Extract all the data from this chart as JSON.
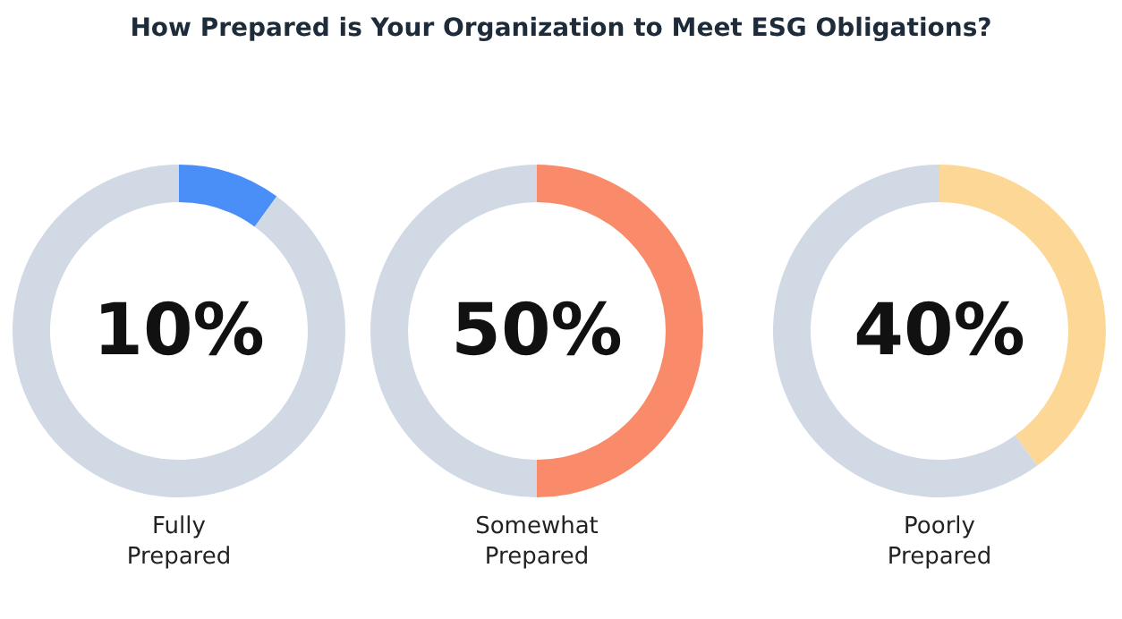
{
  "chart_data": [
    {
      "type": "donut",
      "title": "How Prepared is Your Organization to Meet ESG Obligations?",
      "xlabel": "Fully\nPrepared",
      "categories": [
        null,
        null
      ],
      "values": [
        10,
        90
      ],
      "colors": [
        "#4a8ff7",
        "#d0d9e4"
      ],
      "annotations": [
        "10%"
      ]
    },
    {
      "type": "donut",
      "xlabel": "Somewhat\nPrepared",
      "categories": [
        null,
        null
      ],
      "values": [
        50,
        50
      ],
      "colors": [
        "#f98b6a",
        "#d0d9e4"
      ],
      "annotations": [
        "50%"
      ]
    },
    {
      "type": "donut",
      "xlabel": "Poorly\nPrepared",
      "categories": [
        null,
        null
      ],
      "values": [
        40,
        60
      ],
      "colors": [
        "#fdd795",
        "#d0d9e4"
      ],
      "annotations": [
        "40%"
      ]
    }
  ]
}
